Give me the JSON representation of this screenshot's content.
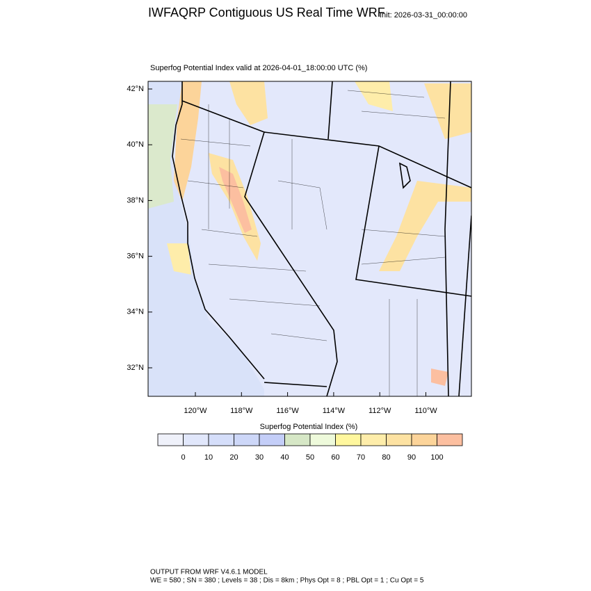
{
  "header": {
    "title": "IWFAQRP Contiguous US Real Time WRF",
    "init": "Init: 2026-03-31_00:00:00",
    "subtitle": "Superfog Potential Index valid at 2026-04-01_18:00:00 UTC   (%)"
  },
  "map": {
    "lat_labels": [
      "42°N",
      "40°N",
      "38°N",
      "36°N",
      "34°N",
      "32°N"
    ],
    "lon_labels": [
      "120°W",
      "118°W",
      "116°W",
      "114°W",
      "112°W",
      "110°W"
    ]
  },
  "colorbar": {
    "title": "Superfog Potential Index  (%)",
    "colors": [
      "#eff1fa",
      "#e1e7fb",
      "#d5defa",
      "#cdd7f8",
      "#c4cef8",
      "#d6e7c6",
      "#eefadb",
      "#fff79e",
      "#feedaa",
      "#fde2a2",
      "#fcd49a",
      "#fcbfa0"
    ],
    "labels": [
      "0",
      "10",
      "20",
      "30",
      "40",
      "50",
      "60",
      "70",
      "80",
      "90",
      "100"
    ]
  },
  "footer": {
    "line1": "OUTPUT FROM WRF V4.6.1 MODEL",
    "line2": "WE = 580 ; SN = 380 ; Levels = 38 ; Dis = 8km ; Phys Opt = 8 ; PBL Opt = 1 ; Cu Opt = 5"
  }
}
